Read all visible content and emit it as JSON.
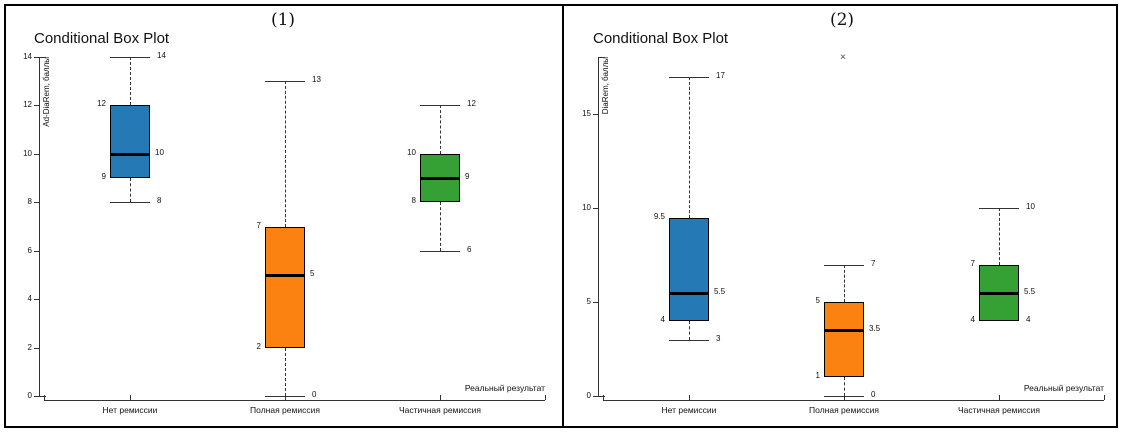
{
  "window": {
    "background": "#ffffff",
    "frame_color": "#000000",
    "axis_color": "#333333",
    "text_color": "#111111",
    "median_color": "#000000",
    "outlier_color": "#444444"
  },
  "chart_data": [
    {
      "type": "box",
      "panel_label": "(1)",
      "title": "Conditional Box Plot",
      "ylabel": "Ad-DiaRem, баллы",
      "xlabel": "Реальный результат",
      "ylim": [
        0,
        14
      ],
      "yticks": [
        0,
        2,
        4,
        6,
        8,
        10,
        12,
        14
      ],
      "grid": false,
      "categories": [
        "Нет ремиссии",
        "Полная ремиссия",
        "Частичная ремиссия"
      ],
      "boxes": [
        {
          "category": "Нет ремиссии",
          "color": "#2579B5",
          "whisker_low": 8,
          "q1": 9,
          "median": 10,
          "q3": 12,
          "whisker_high": 14,
          "outliers": []
        },
        {
          "category": "Полная ремиссия",
          "color": "#FB8111",
          "whisker_low": 0,
          "q1": 2,
          "median": 5,
          "q3": 7,
          "whisker_high": 13,
          "outliers": []
        },
        {
          "category": "Частичная ремиссия",
          "color": "#35A135",
          "whisker_low": 6,
          "q1": 8,
          "median": 9,
          "q3": 10,
          "whisker_high": 12,
          "outliers": []
        }
      ]
    },
    {
      "type": "box",
      "panel_label": "(2)",
      "title": "Conditional Box Plot",
      "ylabel": "DiaRem, баллы",
      "xlabel": "Реальный результат",
      "ylim": [
        0,
        18.05
      ],
      "yticks": [
        0,
        5,
        10,
        15
      ],
      "grid": false,
      "categories": [
        "Нет ремиссии",
        "Полная ремиссия",
        "Частичная ремиссия"
      ],
      "boxes": [
        {
          "category": "Нет ремиссии",
          "color": "#2579B5",
          "whisker_low": 3,
          "q1": 4,
          "median": 5.5,
          "q3": 9.5,
          "whisker_high": 17,
          "outliers": []
        },
        {
          "category": "Полная ремиссия",
          "color": "#FB8111",
          "whisker_low": 0,
          "q1": 1,
          "median": 3.5,
          "q3": 5,
          "whisker_high": 7,
          "outliers": [
            18
          ]
        },
        {
          "category": "Частичная ремиссия",
          "color": "#35A135",
          "whisker_low": 4,
          "q1": 4,
          "median": 5.5,
          "q3": 7,
          "whisker_high": 10,
          "outliers": []
        }
      ]
    }
  ]
}
